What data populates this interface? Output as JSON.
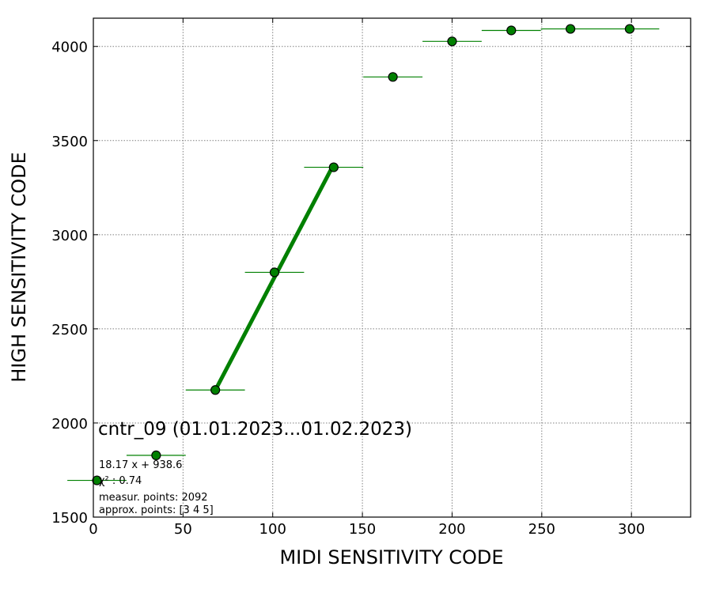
{
  "chart_data": {
    "type": "scatter",
    "title": "",
    "xlabel": "MIDI SENSITIVITY CODE",
    "ylabel": "HIGH SENSITIVITY CODE",
    "xlim": [
      0,
      333
    ],
    "ylim": [
      1500,
      4150
    ],
    "xticks": [
      0,
      50,
      100,
      150,
      200,
      250,
      300
    ],
    "yticks": [
      1500,
      2000,
      2500,
      3000,
      3500,
      4000
    ],
    "grid": true,
    "series": [
      {
        "color": "#008000",
        "x": [
          2,
          35,
          68,
          101,
          134,
          167,
          200,
          233,
          266,
          299
        ],
        "y": [
          1695,
          1828,
          2175,
          2800,
          3358,
          3838,
          4027,
          4085,
          4093,
          4093
        ],
        "xerr": [
          16.5,
          16.5,
          16.5,
          16.5,
          16.5,
          16.5,
          16.5,
          16.5,
          16.5,
          16.5
        ]
      }
    ],
    "fit_line": {
      "color": "#008000",
      "slope": 18.17,
      "intercept": 938.6,
      "x_range": [
        68,
        134
      ]
    },
    "annotations": {
      "heading": "cntr_09 (01.01.2023...01.02.2023)",
      "equation": "18.17 x + 938.6",
      "chi2": "χ² : 0.74",
      "measur_points": "measur. points: 2092",
      "approx_points": "approx. points: [3 4 5]"
    }
  }
}
